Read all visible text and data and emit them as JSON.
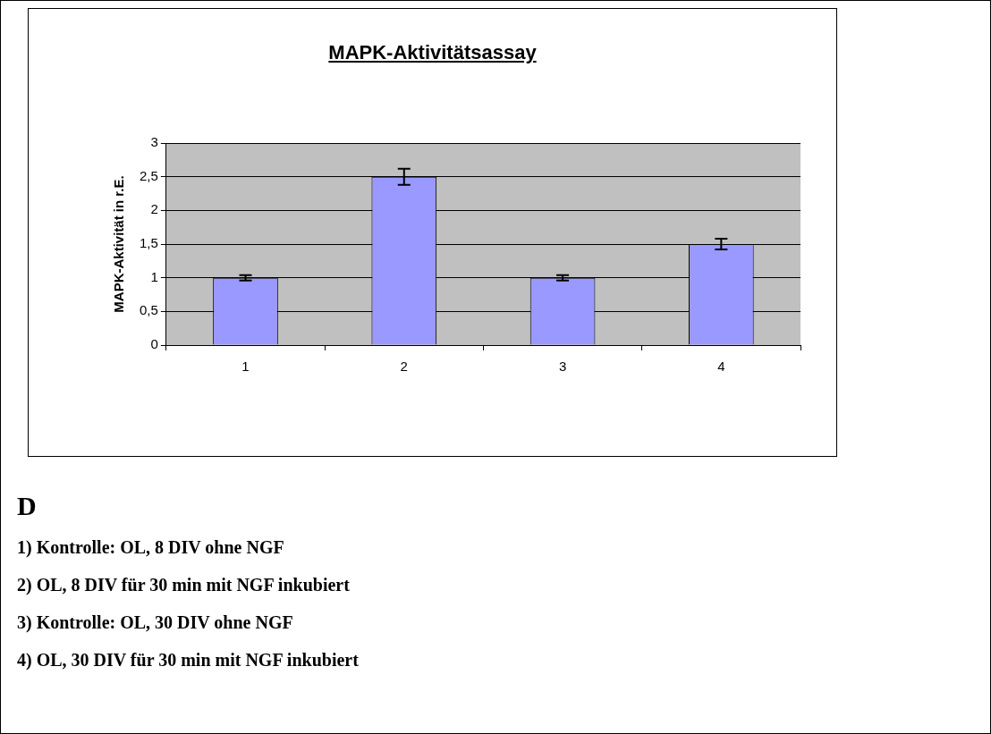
{
  "chart_data": {
    "type": "bar",
    "title": "MAPK-Aktivitätsassay",
    "ylabel": "MAPK-Aktivität in r.E.",
    "categories": [
      "1",
      "2",
      "3",
      "4"
    ],
    "values": [
      1,
      2.5,
      1,
      1.5
    ],
    "errors": [
      0.04,
      0.12,
      0.04,
      0.08
    ],
    "color": "#9999ff",
    "ylim": [
      0,
      3
    ],
    "yticks": [
      0,
      {
        "value": 0.5,
        "label": "0,5"
      },
      1,
      {
        "value": 1.5,
        "label": "1,5"
      },
      2,
      {
        "value": 2.5,
        "label": "2,5"
      },
      3
    ],
    "grid": "y",
    "legend": false,
    "annotations": [
      "D",
      "1) Kontrolle: OL, 8 DIV ohne NGF",
      "2) OL, 8 DIV für 30 min mit NGF inkubiert",
      "3) Kontrolle: OL, 30 DIV ohne NGF",
      "4) OL, 30 DIV für 30 min mit NGF inkubiert"
    ]
  }
}
